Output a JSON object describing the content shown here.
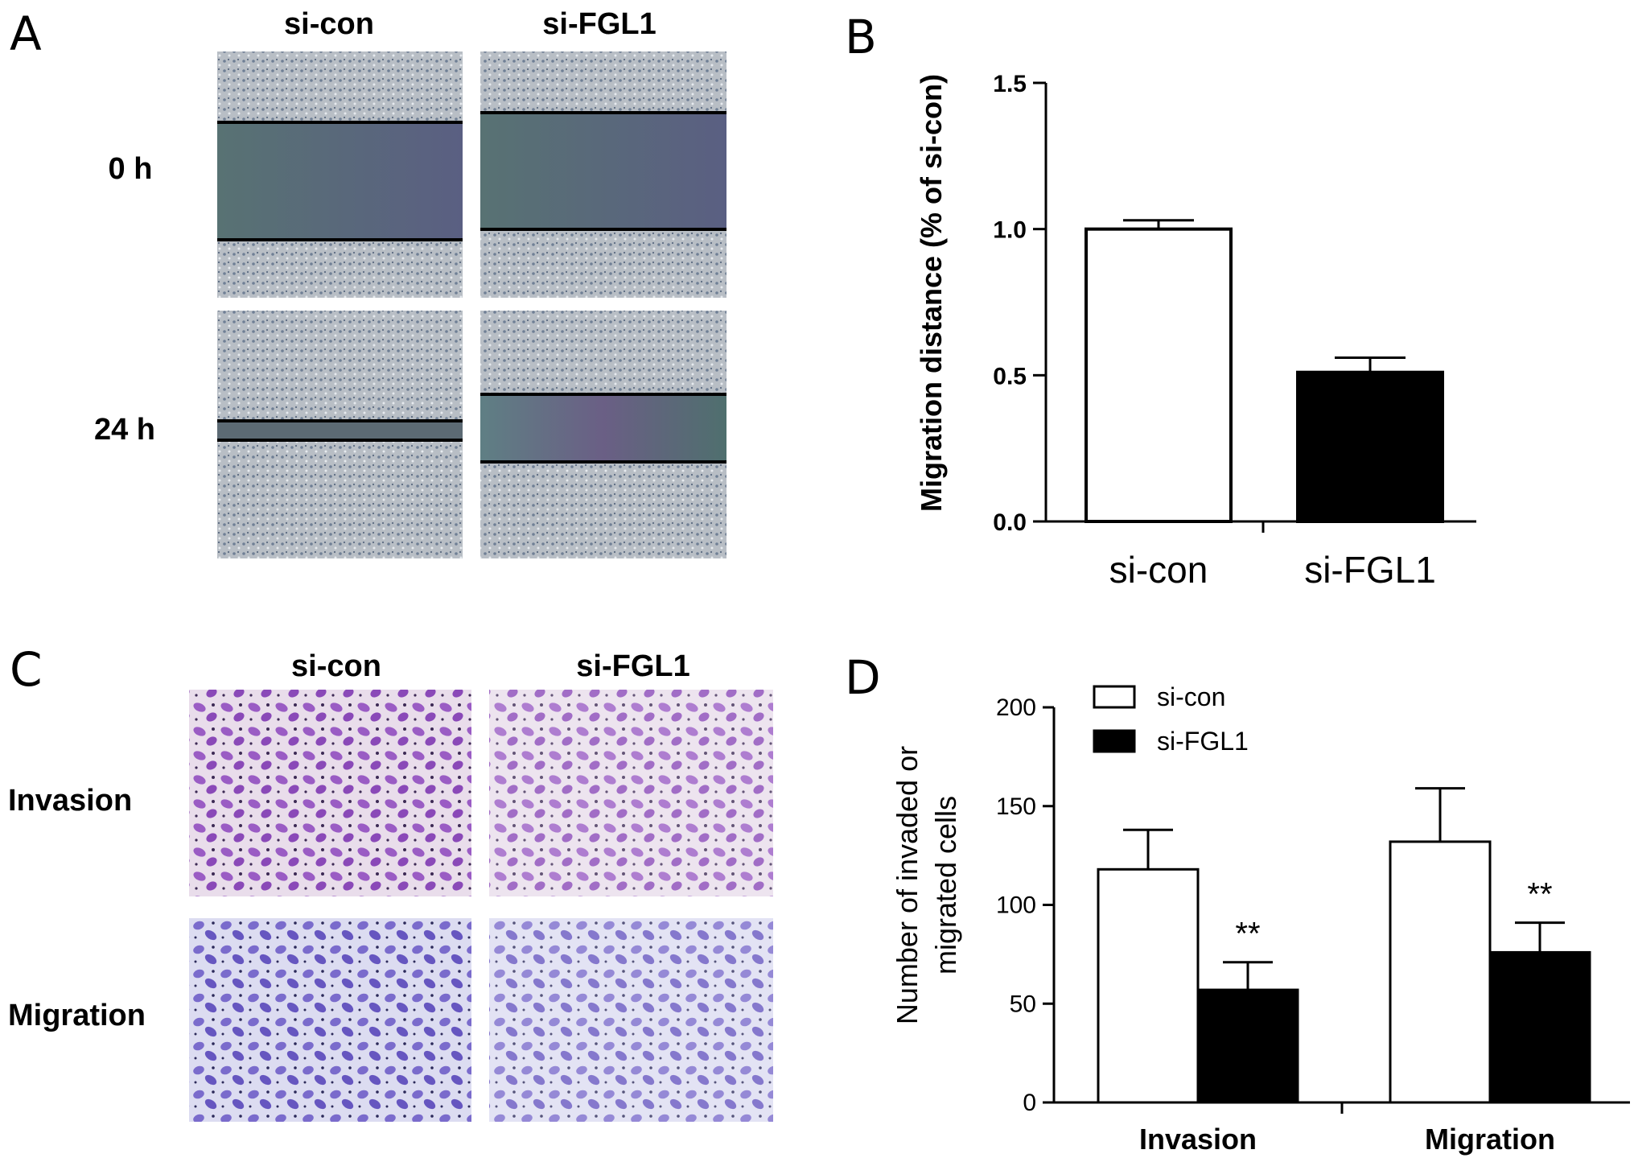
{
  "panels": {
    "a": {
      "letter": "A",
      "columns": [
        "si-con",
        "si-FGL1"
      ],
      "rows": [
        "0 h",
        "24 h"
      ]
    },
    "c": {
      "letter": "C",
      "columns": [
        "si-con",
        "si-FGL1"
      ],
      "rows": [
        "Invasion",
        "Migration"
      ]
    }
  },
  "colors": {
    "scratch_bg": "#b7bcc3",
    "scratch_gap": "#5d7275",
    "invasion_bg": "#e8dcea",
    "invasion_cells": "#8f4fbf",
    "migration_bg": "#dcdcf0",
    "migration_cells": "#7063c6",
    "bar_open": "#ffffff",
    "bar_filled": "#000000"
  },
  "chart_data": [
    {
      "panel": "B",
      "type": "bar",
      "categories": [
        "si-con",
        "si-FGL1"
      ],
      "values": [
        1.0,
        0.51
      ],
      "errors": [
        0.03,
        0.05
      ],
      "bar_colors": [
        "#ffffff",
        "#000000"
      ],
      "ylabel": "Migration distance (% of si-con)",
      "ylim": [
        0,
        1.5
      ],
      "yticks": [
        "0.0",
        "0.5",
        "1.0",
        "1.5"
      ],
      "grid": false
    },
    {
      "panel": "D",
      "type": "bar",
      "categories": [
        "Invasion",
        "Migration"
      ],
      "series": [
        {
          "name": "si-con",
          "values": [
            118,
            132
          ],
          "errors": [
            20,
            27
          ],
          "color": "#ffffff"
        },
        {
          "name": "si-FGL1",
          "values": [
            57,
            76
          ],
          "errors": [
            14,
            15
          ],
          "color": "#000000"
        }
      ],
      "annotations": [
        "**",
        "**"
      ],
      "ylabel": [
        "Number of invaded or",
        "migrated cells"
      ],
      "ylim": [
        0,
        200
      ],
      "yticks": [
        "0",
        "50",
        "100",
        "150",
        "200"
      ],
      "legend": "top-left",
      "grid": false
    }
  ]
}
